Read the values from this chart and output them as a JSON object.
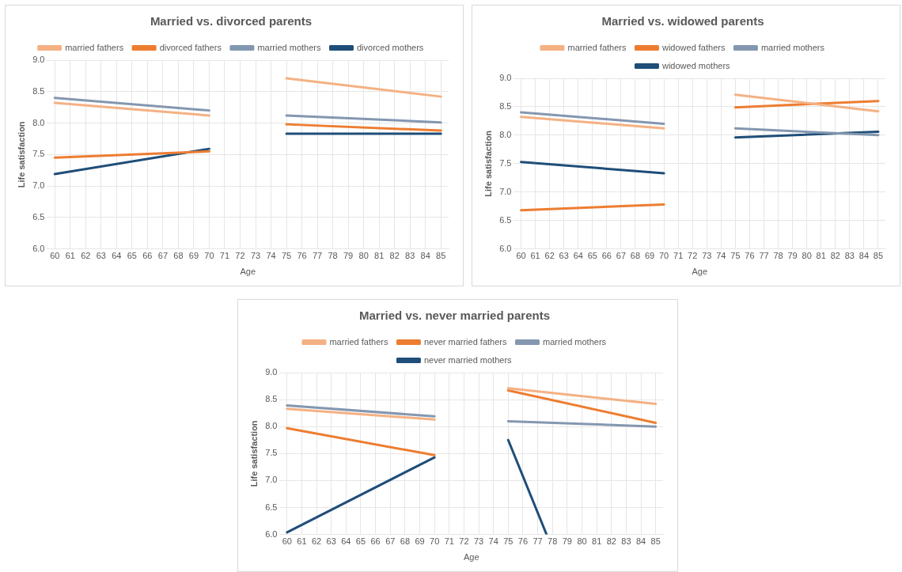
{
  "chart_data": [
    {
      "type": "line",
      "title": "Married vs. divorced parents",
      "xlabel": "Age",
      "ylabel": "Life satisfaction",
      "xlim": [
        59.5,
        85.5
      ],
      "xticks": [
        60,
        61,
        62,
        63,
        64,
        65,
        66,
        67,
        68,
        69,
        70,
        71,
        72,
        73,
        74,
        75,
        76,
        77,
        78,
        79,
        80,
        81,
        82,
        83,
        84,
        85
      ],
      "ylim": [
        6,
        9
      ],
      "yticks": [
        {
          "value": 6,
          "label": "6.0"
        },
        {
          "value": 6.5,
          "label": "6.5"
        },
        {
          "value": 7,
          "label": "7.0"
        },
        {
          "value": 7.5,
          "label": "7.5"
        },
        {
          "value": 8,
          "label": "8.0"
        },
        {
          "value": 8.5,
          "label": "8.5"
        },
        {
          "value": 9,
          "label": "9.0"
        }
      ],
      "grid": true,
      "legend": "top",
      "marker": "none",
      "line_style": "solid",
      "series": [
        {
          "name": "married fathers",
          "color": "#f4b183",
          "x": [
            60,
            70,
            72,
            75,
            85
          ],
          "values": [
            8.32,
            8.12,
            null,
            8.71,
            8.42
          ]
        },
        {
          "name": "divorced fathers",
          "color": "#ed7d31",
          "x": [
            60,
            70,
            72,
            75,
            85
          ],
          "values": [
            7.45,
            7.55,
            null,
            7.98,
            7.88
          ]
        },
        {
          "name": "married mothers",
          "color": "#8497b0",
          "x": [
            60,
            70,
            72,
            75,
            85
          ],
          "values": [
            8.4,
            8.2,
            null,
            8.12,
            8.01
          ]
        },
        {
          "name": "divorced mothers",
          "color": "#1f4e79",
          "x": [
            60,
            70,
            72,
            75,
            85
          ],
          "values": [
            7.19,
            7.59,
            null,
            7.83,
            7.83
          ]
        }
      ]
    },
    {
      "type": "line",
      "title": "Married vs. widowed parents",
      "xlabel": "Age",
      "ylabel": "Life satisfaction",
      "xlim": [
        59.5,
        85.5
      ],
      "xticks": [
        60,
        61,
        62,
        63,
        64,
        65,
        66,
        67,
        68,
        69,
        70,
        71,
        72,
        73,
        74,
        75,
        76,
        77,
        78,
        79,
        80,
        81,
        82,
        83,
        84,
        85
      ],
      "ylim": [
        6,
        9
      ],
      "yticks": [
        {
          "value": 6,
          "label": "6.0"
        },
        {
          "value": 6.5,
          "label": "6.5"
        },
        {
          "value": 7,
          "label": "7.0"
        },
        {
          "value": 7.5,
          "label": "7.5"
        },
        {
          "value": 8,
          "label": "8.0"
        },
        {
          "value": 8.5,
          "label": "8.5"
        },
        {
          "value": 9,
          "label": "9.0"
        }
      ],
      "grid": true,
      "legend": "top",
      "marker": "none",
      "line_style": "solid",
      "series": [
        {
          "name": "married fathers",
          "color": "#f4b183",
          "x": [
            60,
            70,
            72,
            75,
            85
          ],
          "values": [
            8.32,
            8.12,
            null,
            8.71,
            8.42
          ]
        },
        {
          "name": "widowed fathers",
          "color": "#ed7d31",
          "x": [
            60,
            70,
            72,
            75,
            85
          ],
          "values": [
            6.68,
            6.78,
            null,
            8.49,
            8.6
          ]
        },
        {
          "name": "married mothers",
          "color": "#8497b0",
          "x": [
            60,
            70,
            72,
            75,
            85
          ],
          "values": [
            8.4,
            8.2,
            null,
            8.12,
            8.0
          ]
        },
        {
          "name": "widowed mothers",
          "color": "#1f4e79",
          "x": [
            60,
            70,
            72,
            75,
            85
          ],
          "values": [
            7.53,
            7.33,
            null,
            7.96,
            8.06
          ]
        }
      ]
    },
    {
      "type": "line",
      "title": "Married vs. never married parents",
      "xlabel": "Age",
      "ylabel": "Life satisfaction",
      "xlim": [
        59.5,
        85.5
      ],
      "xticks": [
        60,
        61,
        62,
        63,
        64,
        65,
        66,
        67,
        68,
        69,
        70,
        71,
        72,
        73,
        74,
        75,
        76,
        77,
        78,
        79,
        80,
        81,
        82,
        83,
        84,
        85
      ],
      "ylim": [
        6,
        9
      ],
      "yticks": [
        {
          "value": 6,
          "label": "6.0"
        },
        {
          "value": 6.5,
          "label": "6.5"
        },
        {
          "value": 7,
          "label": "7.0"
        },
        {
          "value": 7.5,
          "label": "7.5"
        },
        {
          "value": 8,
          "label": "8.0"
        },
        {
          "value": 8.5,
          "label": "8.5"
        },
        {
          "value": 9,
          "label": "9.0"
        }
      ],
      "grid": true,
      "legend": "top",
      "marker": "none",
      "line_style": "solid",
      "series": [
        {
          "name": "married fathers",
          "color": "#f4b183",
          "x": [
            60,
            70,
            72,
            75,
            85
          ],
          "values": [
            8.33,
            8.13,
            null,
            8.71,
            8.42
          ]
        },
        {
          "name": "never married fathers",
          "color": "#ed7d31",
          "x": [
            60,
            70,
            72,
            75,
            85
          ],
          "values": [
            7.97,
            7.47,
            null,
            8.67,
            8.07
          ]
        },
        {
          "name": "married mothers",
          "color": "#8497b0",
          "x": [
            60,
            70,
            72,
            75,
            85
          ],
          "values": [
            8.39,
            8.19,
            null,
            8.1,
            8.0
          ]
        },
        {
          "name": "never married mothers",
          "color": "#1f4e79",
          "x": [
            60,
            70,
            72,
            75,
            77.6
          ],
          "values": [
            6.04,
            7.43,
            null,
            7.75,
            6.0
          ]
        }
      ]
    }
  ]
}
